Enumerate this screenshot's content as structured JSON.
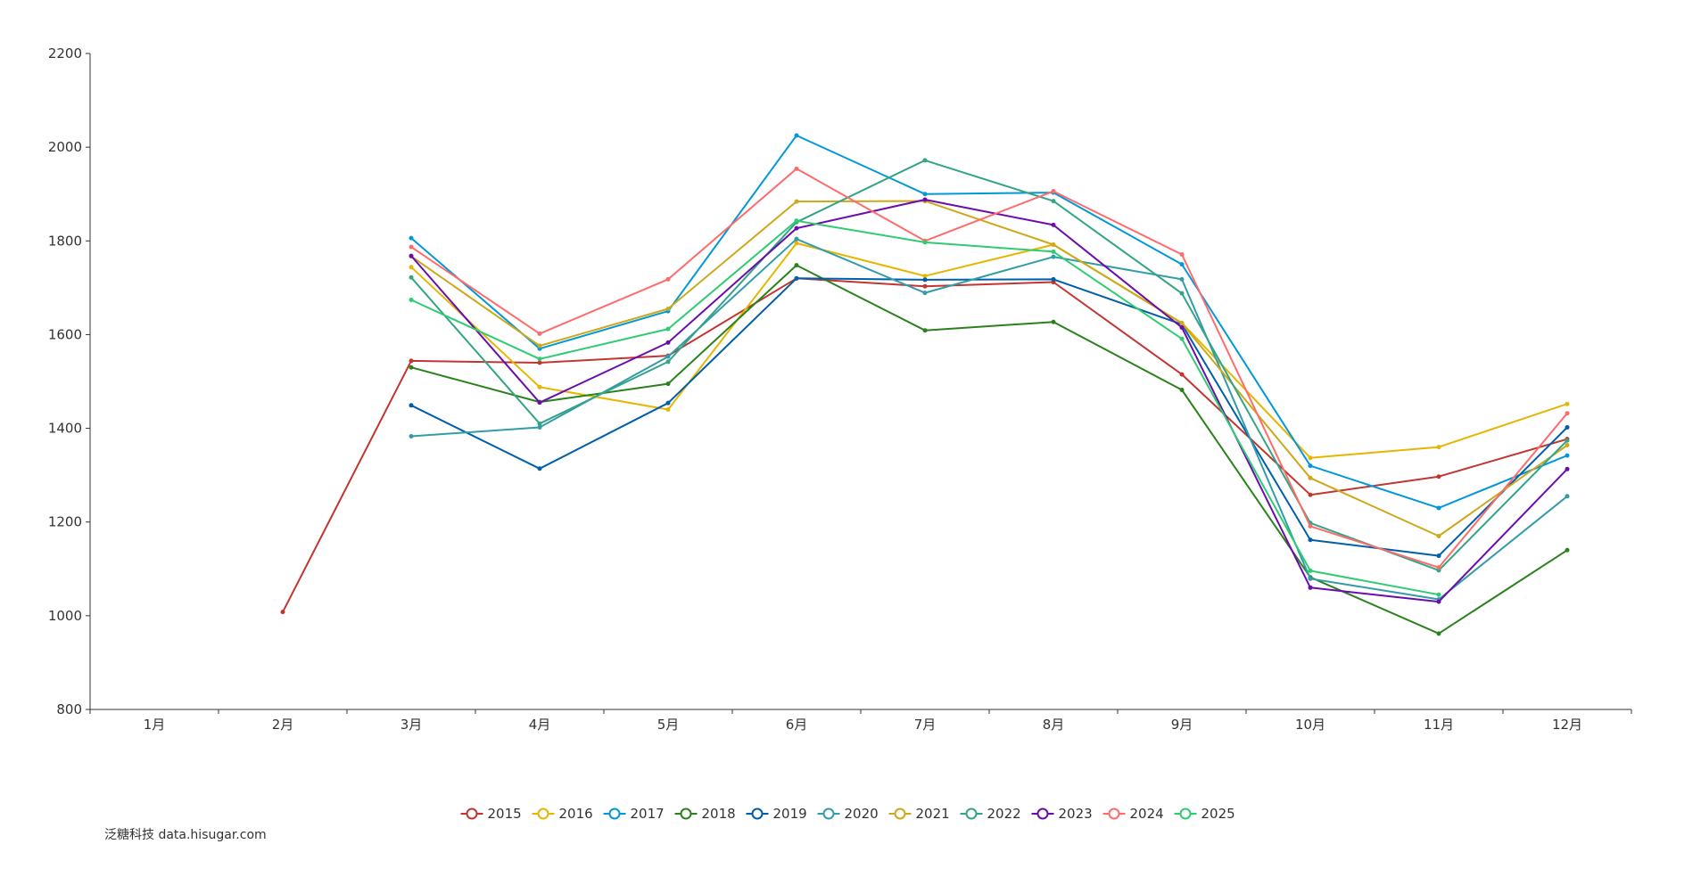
{
  "chart_data": {
    "type": "line",
    "title": "",
    "xlabel": "",
    "ylabel": "",
    "ylim": [
      800,
      2200
    ],
    "yticks": [
      800,
      1000,
      1200,
      1400,
      1600,
      1800,
      2000,
      2200
    ],
    "categories": [
      "1月",
      "2月",
      "3月",
      "4月",
      "5月",
      "6月",
      "7月",
      "8月",
      "9月",
      "10月",
      "11月",
      "12月"
    ],
    "legend_position": "bottom-center",
    "series": [
      {
        "name": "2015",
        "color": "#c23531",
        "values": [
          null,
          1008,
          1544,
          1540,
          1555,
          1720,
          1703,
          1712,
          1515,
          1258,
          1297,
          1377
        ]
      },
      {
        "name": "2016",
        "color": "#e6b600",
        "values": [
          null,
          null,
          1744,
          1488,
          1440,
          1795,
          1725,
          1792,
          1625,
          1337,
          1360,
          1452
        ]
      },
      {
        "name": "2017",
        "color": "#0098d9",
        "values": [
          null,
          null,
          1806,
          1570,
          1650,
          2025,
          1900,
          1903,
          1750,
          1320,
          1230,
          1342
        ]
      },
      {
        "name": "2018",
        "color": "#2b821d",
        "values": [
          null,
          null,
          1530,
          1456,
          1495,
          1748,
          1609,
          1627,
          1482,
          1082,
          962,
          1140
        ]
      },
      {
        "name": "2019",
        "color": "#005eaa",
        "values": [
          null,
          null,
          1449,
          1314,
          1454,
          1720,
          1717,
          1718,
          1622,
          1162,
          1128,
          1402
        ]
      },
      {
        "name": "2020",
        "color": "#339ca8",
        "values": [
          null,
          null,
          1383,
          1402,
          1553,
          1804,
          1689,
          1766,
          1718,
          1079,
          1035,
          1255
        ]
      },
      {
        "name": "2021",
        "color": "#cda819",
        "values": [
          null,
          null,
          1767,
          1576,
          1655,
          1884,
          1885,
          1792,
          1624,
          1294,
          1170,
          1364
        ]
      },
      {
        "name": "2022",
        "color": "#32a487",
        "values": [
          null,
          null,
          1722,
          1410,
          1542,
          1840,
          1972,
          1885,
          1688,
          1198,
          1097,
          1374
        ]
      },
      {
        "name": "2023",
        "color": "#6a0dad",
        "values": [
          null,
          null,
          1768,
          1455,
          1583,
          1827,
          1888,
          1834,
          1615,
          1060,
          1030,
          1313
        ]
      },
      {
        "name": "2024",
        "color": "#ff6b6b",
        "values": [
          null,
          null,
          1787,
          1602,
          1718,
          1954,
          1800,
          1906,
          1771,
          1191,
          1103,
          1432
        ]
      },
      {
        "name": "2025",
        "color": "#2ecc71",
        "values": [
          null,
          null,
          1674,
          1548,
          1612,
          1843,
          1797,
          1777,
          1591,
          1096,
          1045,
          null
        ]
      }
    ]
  },
  "watermark": "泛糖科技 data.hisugar.com"
}
